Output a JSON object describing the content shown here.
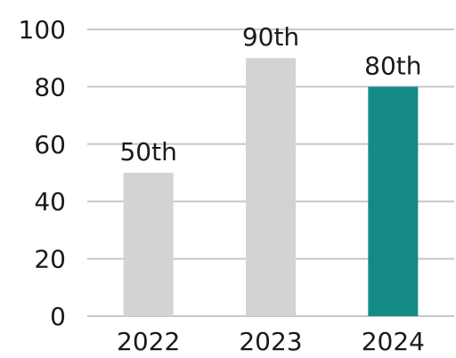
{
  "chart_data": {
    "type": "bar",
    "categories": [
      "2022",
      "2023",
      "2024"
    ],
    "values": [
      50,
      90,
      80
    ],
    "data_labels": [
      "50th",
      "90th",
      "80th"
    ],
    "bar_colors": [
      "#d2d3d5",
      "#d2d3d5",
      "#138a85"
    ],
    "yticks": [
      0,
      20,
      40,
      60,
      80,
      100
    ],
    "ylim": [
      0,
      100
    ],
    "grid": true,
    "legend": "none",
    "title": "",
    "xlabel": "",
    "ylabel": ""
  }
}
